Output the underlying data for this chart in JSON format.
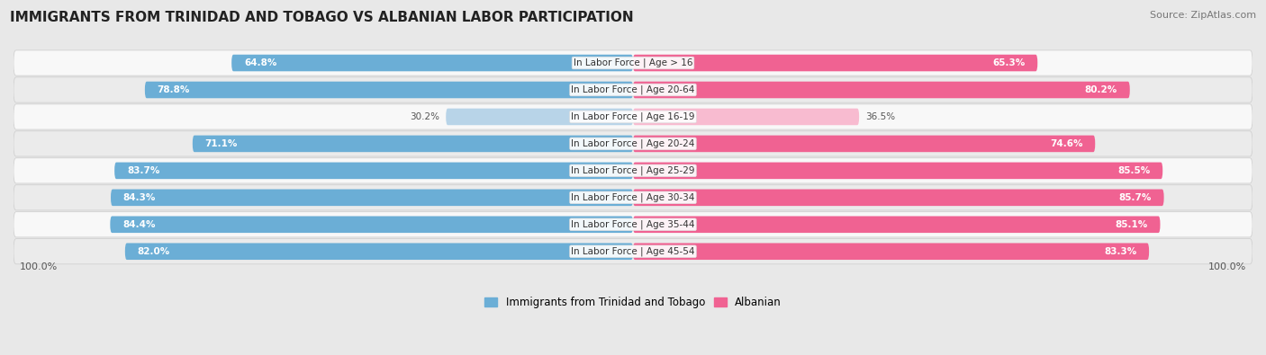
{
  "title": "IMMIGRANTS FROM TRINIDAD AND TOBAGO VS ALBANIAN LABOR PARTICIPATION",
  "source": "Source: ZipAtlas.com",
  "categories": [
    "In Labor Force | Age > 16",
    "In Labor Force | Age 20-64",
    "In Labor Force | Age 16-19",
    "In Labor Force | Age 20-24",
    "In Labor Force | Age 25-29",
    "In Labor Force | Age 30-34",
    "In Labor Force | Age 35-44",
    "In Labor Force | Age 45-54"
  ],
  "trinidad_values": [
    64.8,
    78.8,
    30.2,
    71.1,
    83.7,
    84.3,
    84.4,
    82.0
  ],
  "albanian_values": [
    65.3,
    80.2,
    36.5,
    74.6,
    85.5,
    85.7,
    85.1,
    83.3
  ],
  "trinidad_color": "#6baed6",
  "trinidad_color_light": "#b8d4e8",
  "albanian_color": "#f06292",
  "albanian_color_light": "#f8bbd0",
  "label_trinidad": "Immigrants from Trinidad and Tobago",
  "label_albanian": "Albanian",
  "bg_color": "#e8e8e8",
  "row_bg_even": "#f5f5f5",
  "row_bg_odd": "#e0e0e0",
  "bar_height": 0.62,
  "max_val": 100.0,
  "x_left_label": "100.0%",
  "x_right_label": "100.0%",
  "title_fontsize": 11,
  "source_fontsize": 8,
  "label_fontsize": 7.5,
  "cat_fontsize": 7.5
}
